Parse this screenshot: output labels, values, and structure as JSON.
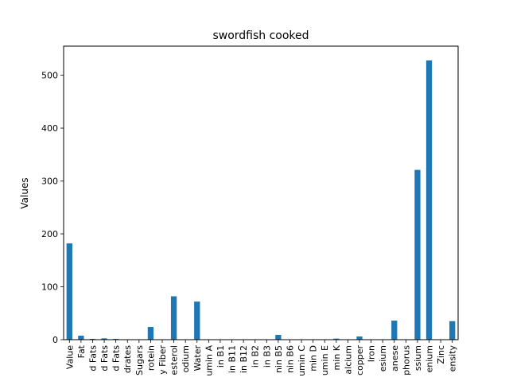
{
  "chart_data": {
    "type": "bar",
    "title": "swordfish cooked",
    "xlabel": "",
    "ylabel": "Values",
    "ylim": [
      0,
      555
    ],
    "yticks": [
      0,
      100,
      200,
      300,
      400,
      500
    ],
    "grid": false,
    "legend": "none",
    "bar_color": "#1f77b4",
    "categories": [
      "Value",
      "Fat",
      "d Fats",
      "d Fats",
      "d Fats",
      "drates",
      "Sugars",
      "rotein",
      "y Fiber",
      "esterol",
      "odium",
      "Water",
      "umin A",
      "in B1",
      "in B11",
      "in B12",
      "in B2",
      "in B3",
      "nin B5",
      "nin B6",
      "umin C",
      "min D",
      "umin E",
      "min K",
      "alcium",
      "copper",
      "Iron",
      "esium",
      "anese",
      "phorus",
      "ssium",
      "enium",
      "Zinc",
      "ensity"
    ],
    "values": [
      182,
      7.5,
      1.5,
      2.5,
      1.5,
      0,
      0,
      24,
      0,
      82,
      0,
      72,
      0,
      0,
      0,
      0,
      0,
      0,
      9,
      0,
      0,
      0,
      0,
      2,
      0,
      6,
      0,
      0,
      36,
      0,
      321,
      528,
      0,
      35
    ]
  }
}
